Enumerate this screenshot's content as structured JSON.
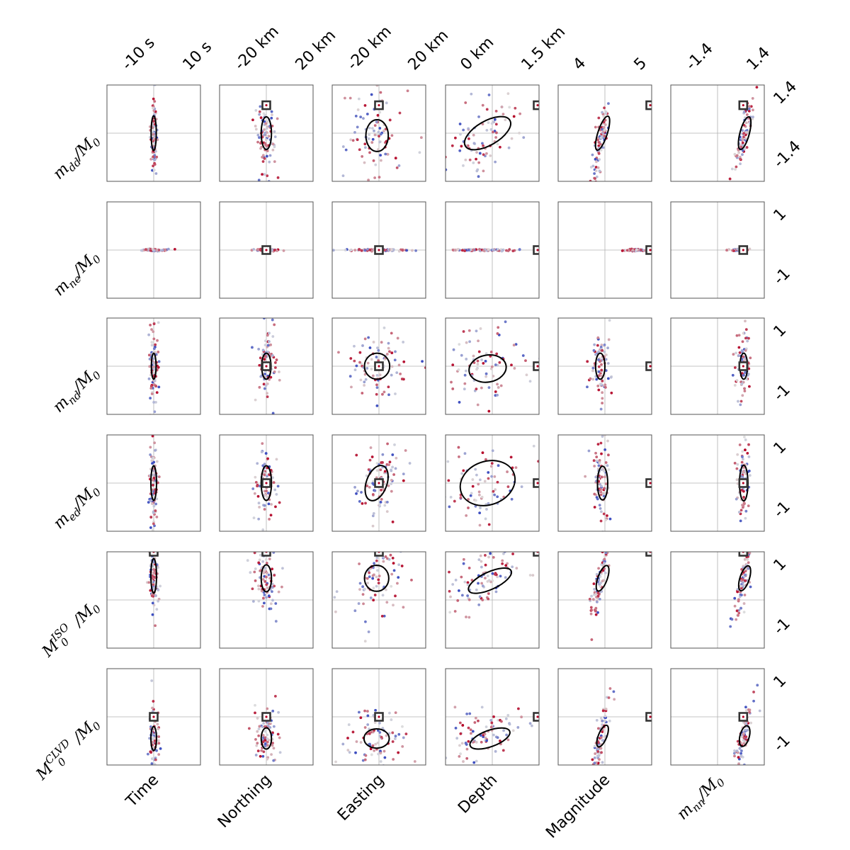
{
  "chart_data": {
    "type": "scatter",
    "title": "",
    "layout": "6x6 grid of corner-plot panels; each panel overlays an uncertainty ellipse and a boxed reference solution on the ensemble scatter; central grey crosshair marks zero/reference",
    "columns": [
      {
        "key": "time",
        "label": "Time",
        "ticks": [
          "-10 s",
          "10 s"
        ],
        "range": [
          -10,
          10
        ],
        "unit": "s"
      },
      {
        "key": "northing",
        "label": "Northing",
        "ticks": [
          "-20 km",
          "20 km"
        ],
        "range": [
          -20,
          20
        ],
        "unit": "km"
      },
      {
        "key": "easting",
        "label": "Easting",
        "ticks": [
          "-20 km",
          "20 km"
        ],
        "range": [
          -20,
          20
        ],
        "unit": "km"
      },
      {
        "key": "depth",
        "label": "Depth",
        "ticks": [
          "0 km",
          "1.5 km"
        ],
        "range": [
          0,
          1.5
        ],
        "unit": "km"
      },
      {
        "key": "magnitude",
        "label": "Magnitude",
        "ticks": [
          "4",
          "5"
        ],
        "range": [
          4,
          5
        ],
        "unit": ""
      },
      {
        "key": "mnn",
        "label_base": "m",
        "label_sub": "nn",
        "label_rest": "/M",
        "label_rest_sub": "0",
        "ticks": [
          "-1.4",
          "1.4"
        ],
        "range": [
          -1.4,
          1.4
        ]
      }
    ],
    "rows": [
      {
        "key": "mdd",
        "label_base": "m",
        "label_sub": "dd",
        "label_sup": "",
        "ticks": [
          "1.4",
          "-1.4"
        ],
        "range": [
          -1.4,
          1.4
        ]
      },
      {
        "key": "mne",
        "label_base": "m",
        "label_sub": "ne",
        "label_sup": "",
        "ticks": [
          "1",
          "-1"
        ],
        "range": [
          -1,
          1
        ]
      },
      {
        "key": "mnd",
        "label_base": "m",
        "label_sub": "nd",
        "label_sup": "",
        "ticks": [
          "1",
          "-1"
        ],
        "range": [
          -1,
          1
        ]
      },
      {
        "key": "med",
        "label_base": "m",
        "label_sub": "ed",
        "label_sup": "",
        "ticks": [
          "1",
          "-1"
        ],
        "range": [
          -1,
          1
        ]
      },
      {
        "key": "iso",
        "label_base": "M",
        "label_sub": "0",
        "label_sup": "ISO",
        "ticks": [
          "1",
          "-1"
        ],
        "range": [
          -1,
          1
        ]
      },
      {
        "key": "clvd",
        "label_base": "M",
        "label_sub": "0",
        "label_sup": "CLVD",
        "ticks": [
          "1",
          "-1"
        ],
        "range": [
          -1,
          1
        ]
      }
    ],
    "label_divisor": {
      "base": "/M",
      "sub": "0"
    },
    "colormap": {
      "name": "coolwarm",
      "low": "#3b4cc0",
      "mid": "#dddddd",
      "high": "#b40426"
    },
    "ellipse_color": "#000000",
    "reference_marker_color": "#333333",
    "reference_marker_inner": "#b40426",
    "grid": true,
    "legend": "none",
    "panels": [
      [
        {
          "mx": 0.0,
          "my": 0.0,
          "sx": 0.03,
          "sy": 0.42,
          "rho": 0.0,
          "ref": null,
          "ell": {
            "cx": 0.0,
            "cy": 0.0,
            "rx": 0.055,
            "ry": 0.36,
            "ang": 0
          },
          "clip": false
        },
        {
          "mx": 0.0,
          "my": 0.0,
          "sx": 0.12,
          "sy": 0.42,
          "rho": 0.0,
          "ref": [
            0.0,
            0.58
          ],
          "ell": {
            "cx": 0.0,
            "cy": 0.0,
            "rx": 0.11,
            "ry": 0.34,
            "ang": 0
          },
          "clip": false
        },
        {
          "mx": -0.05,
          "my": 0.0,
          "sx": 0.28,
          "sy": 0.42,
          "rho": 0.0,
          "ref": [
            0.0,
            0.58
          ],
          "ell": {
            "cx": -0.04,
            "cy": -0.05,
            "rx": 0.24,
            "ry": 0.33,
            "ang": 0
          },
          "clip": false
        },
        {
          "mx": -0.2,
          "my": -0.15,
          "sx": 0.4,
          "sy": 0.38,
          "rho": 0.5,
          "ref": [
            0.97,
            0.58
          ],
          "ell": {
            "cx": -0.1,
            "cy": -0.0,
            "rx": 0.55,
            "ry": 0.25,
            "ang": -30
          },
          "clip": false
        },
        {
          "mx": -0.1,
          "my": -0.2,
          "sx": 0.1,
          "sy": 0.42,
          "rho": 0.85,
          "ref": [
            0.97,
            0.58
          ],
          "ell": {
            "cx": -0.05,
            "cy": -0.0,
            "rx": 0.1,
            "ry": 0.37,
            "ang": 18
          },
          "clip": false
        },
        {
          "mx": 0.55,
          "my": -0.1,
          "sx": 0.1,
          "sy": 0.42,
          "rho": 0.85,
          "ref": [
            0.55,
            0.58
          ],
          "ell": {
            "cx": 0.58,
            "cy": -0.0,
            "rx": 0.1,
            "ry": 0.35,
            "ang": 15
          },
          "clip": false
        }
      ],
      [
        {
          "mx": 0.0,
          "my": 0.0,
          "sx": 0.12,
          "sy": 0.01,
          "rho": 0.0,
          "ref": null,
          "ell": null,
          "clip": false
        },
        {
          "mx": 0.0,
          "my": 0.0,
          "sx": 0.12,
          "sy": 0.01,
          "rho": 0.0,
          "ref": [
            0.0,
            0.0
          ],
          "ell": null,
          "clip": false
        },
        {
          "mx": -0.1,
          "my": 0.0,
          "sx": 0.45,
          "sy": 0.01,
          "rho": 0.0,
          "ref": [
            0.0,
            0.0
          ],
          "ell": null,
          "clip": false
        },
        {
          "mx": -0.35,
          "my": 0.0,
          "sx": 0.45,
          "sy": 0.01,
          "rho": 0.0,
          "ref": [
            0.97,
            0.0
          ],
          "ell": null,
          "clip": false
        },
        {
          "mx": 0.65,
          "my": 0.0,
          "sx": 0.12,
          "sy": 0.01,
          "rho": 0.0,
          "ref": [
            0.97,
            0.0
          ],
          "ell": null,
          "clip": false
        },
        {
          "mx": 0.48,
          "my": 0.0,
          "sx": 0.1,
          "sy": 0.01,
          "rho": 0.0,
          "ref": [
            0.55,
            0.0
          ],
          "ell": null,
          "clip": false
        }
      ],
      [
        {
          "mx": 0.0,
          "my": 0.0,
          "sx": 0.05,
          "sy": 0.38,
          "rho": 0.0,
          "ref": null,
          "ell": {
            "cx": 0.0,
            "cy": 0.0,
            "rx": 0.05,
            "ry": 0.27,
            "ang": 0
          },
          "clip": false
        },
        {
          "mx": 0.0,
          "my": 0.0,
          "sx": 0.1,
          "sy": 0.38,
          "rho": 0.0,
          "ref": [
            0.0,
            0.0
          ],
          "ell": {
            "cx": 0.0,
            "cy": 0.0,
            "rx": 0.1,
            "ry": 0.27,
            "ang": 0
          },
          "clip": false
        },
        {
          "mx": 0.0,
          "my": 0.0,
          "sx": 0.3,
          "sy": 0.38,
          "rho": 0.0,
          "ref": [
            0.0,
            0.0
          ],
          "ell": {
            "cx": -0.04,
            "cy": 0.0,
            "rx": 0.27,
            "ry": 0.27,
            "ang": 0
          },
          "clip": false
        },
        {
          "mx": -0.3,
          "my": 0.0,
          "sx": 0.5,
          "sy": 0.38,
          "rho": 0.0,
          "ref": [
            0.97,
            0.0
          ],
          "ell": {
            "cx": -0.1,
            "cy": -0.05,
            "rx": 0.4,
            "ry": 0.28,
            "ang": -10
          },
          "clip": false
        },
        {
          "mx": -0.1,
          "my": 0.0,
          "sx": 0.1,
          "sy": 0.38,
          "rho": 0.0,
          "ref": [
            0.97,
            0.0
          ],
          "ell": {
            "cx": -0.1,
            "cy": 0.0,
            "rx": 0.1,
            "ry": 0.27,
            "ang": 0
          },
          "clip": false
        },
        {
          "mx": 0.55,
          "my": 0.0,
          "sx": 0.08,
          "sy": 0.38,
          "rho": 0.0,
          "ref": [
            0.55,
            0.0
          ],
          "ell": {
            "cx": 0.56,
            "cy": 0.0,
            "rx": 0.08,
            "ry": 0.27,
            "ang": 0
          },
          "clip": false
        }
      ],
      [
        {
          "mx": 0.0,
          "my": 0.0,
          "sx": 0.05,
          "sy": 0.42,
          "rho": 0.0,
          "ref": null,
          "ell": {
            "cx": 0.0,
            "cy": 0.0,
            "rx": 0.06,
            "ry": 0.36,
            "ang": 0
          },
          "clip": false
        },
        {
          "mx": 0.0,
          "my": 0.0,
          "sx": 0.12,
          "sy": 0.42,
          "rho": 0.0,
          "ref": [
            0.0,
            0.0
          ],
          "ell": {
            "cx": 0.0,
            "cy": 0.0,
            "rx": 0.11,
            "ry": 0.36,
            "ang": 0
          },
          "clip": false
        },
        {
          "mx": 0.0,
          "my": 0.0,
          "sx": 0.3,
          "sy": 0.42,
          "rho": 0.4,
          "ref": [
            0.0,
            0.0
          ],
          "ell": {
            "cx": -0.05,
            "cy": 0.0,
            "rx": 0.22,
            "ry": 0.38,
            "ang": 20
          },
          "clip": false
        },
        {
          "mx": -0.3,
          "my": 0.0,
          "sx": 0.5,
          "sy": 0.42,
          "rho": 0.2,
          "ref": [
            0.97,
            0.0
          ],
          "ell": {
            "cx": -0.1,
            "cy": 0.0,
            "rx": 0.6,
            "ry": 0.45,
            "ang": -20
          },
          "clip": false
        },
        {
          "mx": -0.1,
          "my": 0.0,
          "sx": 0.1,
          "sy": 0.42,
          "rho": 0.0,
          "ref": [
            0.97,
            0.0
          ],
          "ell": {
            "cx": -0.05,
            "cy": 0.0,
            "rx": 0.11,
            "ry": 0.35,
            "ang": 0
          },
          "clip": false
        },
        {
          "mx": 0.55,
          "my": 0.0,
          "sx": 0.08,
          "sy": 0.42,
          "rho": 0.0,
          "ref": [
            0.55,
            0.0
          ],
          "ell": {
            "cx": 0.56,
            "cy": 0.0,
            "rx": 0.09,
            "ry": 0.37,
            "ang": 0
          },
          "clip": false
        }
      ],
      [
        {
          "mx": 0.0,
          "my": 0.45,
          "sx": 0.05,
          "sy": 0.4,
          "rho": 0.0,
          "ref": [
            0.0,
            1.0
          ],
          "ell": {
            "cx": 0.0,
            "cy": 0.5,
            "rx": 0.06,
            "ry": 0.36,
            "ang": 0
          },
          "clip": true
        },
        {
          "mx": 0.0,
          "my": 0.45,
          "sx": 0.12,
          "sy": 0.4,
          "rho": 0.0,
          "ref": [
            0.0,
            1.0
          ],
          "ell": {
            "cx": 0.0,
            "cy": 0.45,
            "rx": 0.11,
            "ry": 0.28,
            "ang": 0
          },
          "clip": true
        },
        {
          "mx": -0.05,
          "my": 0.45,
          "sx": 0.3,
          "sy": 0.4,
          "rho": 0.3,
          "ref": [
            0.0,
            1.0
          ],
          "ell": {
            "cx": -0.05,
            "cy": 0.45,
            "rx": 0.26,
            "ry": 0.27,
            "ang": 0
          },
          "clip": true
        },
        {
          "mx": -0.2,
          "my": 0.4,
          "sx": 0.45,
          "sy": 0.3,
          "rho": 0.55,
          "ref": [
            0.97,
            1.0
          ],
          "ell": {
            "cx": -0.05,
            "cy": 0.4,
            "rx": 0.5,
            "ry": 0.18,
            "ang": -25
          },
          "clip": true
        },
        {
          "mx": -0.1,
          "my": 0.4,
          "sx": 0.1,
          "sy": 0.4,
          "rho": 0.85,
          "ref": [
            0.97,
            1.0
          ],
          "ell": {
            "cx": -0.05,
            "cy": 0.45,
            "rx": 0.1,
            "ry": 0.28,
            "ang": 20
          },
          "clip": true
        },
        {
          "mx": 0.55,
          "my": 0.4,
          "sx": 0.1,
          "sy": 0.4,
          "rho": 0.85,
          "ref": [
            0.55,
            1.0
          ],
          "ell": {
            "cx": 0.58,
            "cy": 0.45,
            "rx": 0.1,
            "ry": 0.27,
            "ang": 18
          },
          "clip": true
        }
      ],
      [
        {
          "mx": 0.0,
          "my": -0.45,
          "sx": 0.05,
          "sy": 0.4,
          "rho": 0.0,
          "ref": [
            0.0,
            0.0
          ],
          "ell": {
            "cx": 0.0,
            "cy": -0.45,
            "rx": 0.06,
            "ry": 0.25,
            "ang": 0
          },
          "clip": true
        },
        {
          "mx": 0.0,
          "my": -0.45,
          "sx": 0.12,
          "sy": 0.4,
          "rho": 0.0,
          "ref": [
            0.0,
            0.0
          ],
          "ell": {
            "cx": 0.0,
            "cy": -0.45,
            "rx": 0.11,
            "ry": 0.22,
            "ang": 0
          },
          "clip": true
        },
        {
          "mx": -0.05,
          "my": -0.45,
          "sx": 0.3,
          "sy": 0.4,
          "rho": 0.0,
          "ref": [
            0.0,
            0.0
          ],
          "ell": {
            "cx": -0.05,
            "cy": -0.45,
            "rx": 0.27,
            "ry": 0.2,
            "ang": 0
          },
          "clip": true
        },
        {
          "mx": -0.2,
          "my": -0.4,
          "sx": 0.45,
          "sy": 0.3,
          "rho": 0.55,
          "ref": [
            0.97,
            0.0
          ],
          "ell": {
            "cx": -0.05,
            "cy": -0.45,
            "rx": 0.45,
            "ry": 0.17,
            "ang": -20
          },
          "clip": true
        },
        {
          "mx": -0.1,
          "my": -0.45,
          "sx": 0.1,
          "sy": 0.4,
          "rho": 0.85,
          "ref": [
            0.97,
            0.0
          ],
          "ell": {
            "cx": -0.05,
            "cy": -0.4,
            "rx": 0.09,
            "ry": 0.24,
            "ang": 22
          },
          "clip": true
        },
        {
          "mx": 0.55,
          "my": -0.45,
          "sx": 0.1,
          "sy": 0.4,
          "rho": 0.85,
          "ref": [
            0.55,
            0.0
          ],
          "ell": {
            "cx": 0.58,
            "cy": -0.4,
            "rx": 0.1,
            "ry": 0.22,
            "ang": 15
          },
          "clip": true
        }
      ]
    ]
  }
}
